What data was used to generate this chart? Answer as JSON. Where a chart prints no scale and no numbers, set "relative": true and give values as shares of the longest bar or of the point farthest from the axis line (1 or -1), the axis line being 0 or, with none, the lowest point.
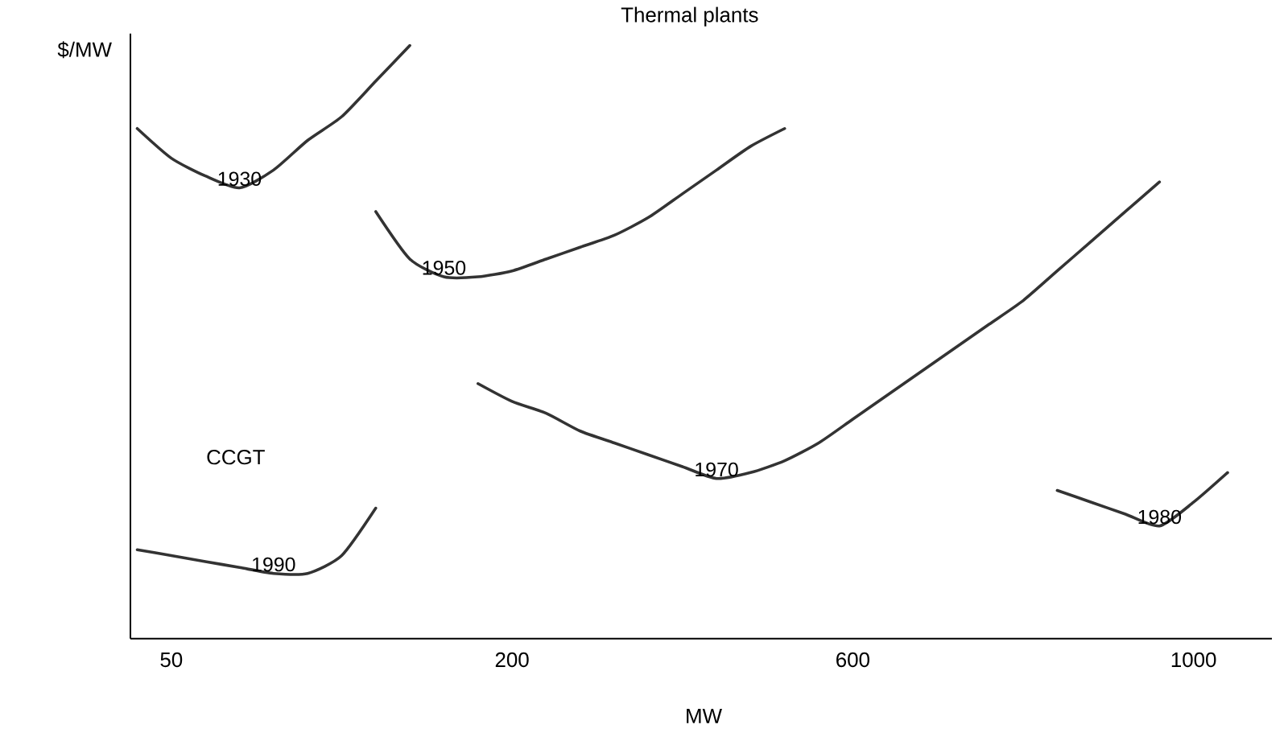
{
  "chart_data": {
    "type": "line",
    "title": "Thermal plants",
    "xlabel": "MW",
    "ylabel": "$/MW",
    "relative": true,
    "legend": false,
    "marker": "none",
    "line_style": "solid",
    "categories": [
      null,
      "50",
      null,
      null,
      null,
      null,
      null,
      null,
      null,
      null,
      null,
      "200",
      null,
      null,
      null,
      null,
      null,
      null,
      null,
      null,
      null,
      "600",
      null,
      null,
      null,
      null,
      null,
      null,
      null,
      null,
      null,
      "1000",
      null,
      null
    ],
    "annotations": [
      "CCGT"
    ],
    "series": [
      {
        "name": "1930",
        "color": "#333333",
        "values": [
          0.86,
          0.81,
          0.78,
          0.76,
          0.79,
          0.84,
          0.88,
          0.94,
          1.0,
          null,
          null,
          null,
          null,
          null,
          null,
          null,
          null,
          null,
          null,
          null,
          null,
          null,
          null,
          null,
          null,
          null,
          null,
          null,
          null,
          null,
          null,
          null,
          null,
          null
        ]
      },
      {
        "name": "1950",
        "color": "#333333",
        "values": [
          null,
          null,
          null,
          null,
          null,
          null,
          null,
          0.72,
          0.64,
          0.61,
          0.61,
          0.62,
          0.64,
          0.66,
          0.68,
          0.71,
          0.75,
          0.79,
          0.83,
          0.86,
          null,
          null,
          null,
          null,
          null,
          null,
          null,
          null,
          null,
          null,
          null,
          null,
          null,
          null
        ]
      },
      {
        "name": "1970",
        "color": "#333333",
        "values": [
          null,
          null,
          null,
          null,
          null,
          null,
          null,
          null,
          null,
          null,
          0.43,
          0.4,
          0.38,
          0.35,
          0.33,
          0.31,
          0.29,
          0.27,
          0.28,
          0.3,
          0.33,
          0.37,
          0.41,
          0.45,
          0.49,
          0.53,
          0.57,
          0.62,
          0.67,
          0.72,
          0.77,
          null,
          null,
          null
        ]
      },
      {
        "name": "1980",
        "color": "#333333",
        "values": [
          null,
          null,
          null,
          null,
          null,
          null,
          null,
          null,
          null,
          null,
          null,
          null,
          null,
          null,
          null,
          null,
          null,
          null,
          null,
          null,
          null,
          null,
          null,
          null,
          null,
          null,
          null,
          0.25,
          0.23,
          0.21,
          0.19,
          0.23,
          0.28,
          null
        ]
      },
      {
        "name": "1990",
        "color": "#333333",
        "values": [
          0.15,
          0.14,
          0.13,
          0.12,
          0.11,
          0.11,
          0.14,
          0.22,
          null,
          null,
          null,
          null,
          null,
          null,
          null,
          null,
          null,
          null,
          null,
          null,
          null,
          null,
          null,
          null,
          null,
          null,
          null,
          null,
          null,
          null,
          null,
          null,
          null,
          null
        ]
      }
    ]
  }
}
